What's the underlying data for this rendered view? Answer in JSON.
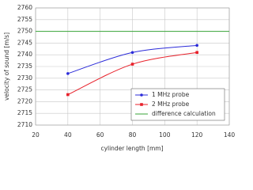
{
  "chart_data": {
    "type": "line",
    "x_label": "cylinder length [mm]",
    "y_label": "velocity of sound [m/s]",
    "series": [
      {
        "name": "1 MHz probe",
        "color": "#2b2bd9",
        "marker": "circle",
        "x": [
          40,
          80,
          120
        ],
        "values": [
          2732,
          2741,
          2744
        ]
      },
      {
        "name": "2 MHz probe",
        "color": "#e8202a",
        "marker": "square",
        "x": [
          40,
          80,
          120
        ],
        "values": [
          2723,
          2736,
          2741
        ]
      },
      {
        "name": "difference calculation",
        "color": "#3aa63a",
        "marker": "none",
        "x": [
          20,
          140
        ],
        "values": [
          2750,
          2750
        ]
      }
    ],
    "xlim": [
      20,
      140
    ],
    "xticks": [
      20,
      40,
      60,
      80,
      100,
      120,
      140
    ],
    "ylim": [
      2710,
      2760
    ],
    "yticks": [
      2710,
      2715,
      2720,
      2725,
      2730,
      2735,
      2740,
      2745,
      2750,
      2755,
      2760
    ],
    "grid": true,
    "smooth": true,
    "legend": "lower right"
  }
}
